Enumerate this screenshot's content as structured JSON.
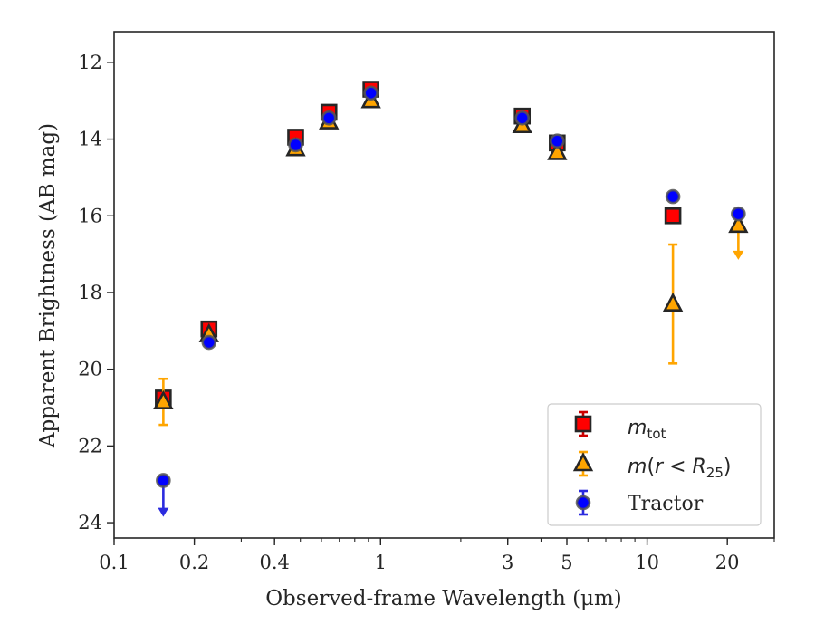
{
  "chart_data": {
    "type": "scatter",
    "xlabel": "Observed-frame Wavelength (μm)",
    "ylabel": "Apparent Brightness (AB mag)",
    "xscale": "log",
    "xlim": [
      0.1,
      30
    ],
    "ylim": [
      24.4,
      11.2
    ],
    "y_inverted": true,
    "grid": false,
    "legend_position": "lower-right",
    "xticks": [
      0.1,
      0.2,
      0.4,
      1,
      3,
      5,
      10,
      20
    ],
    "xtick_labels": [
      "0.1",
      "0.2",
      "0.4",
      "1",
      "3",
      "5",
      "10",
      "20"
    ],
    "yticks": [
      12,
      14,
      16,
      18,
      20,
      22,
      24
    ],
    "ytick_labels": [
      "12",
      "14",
      "16",
      "18",
      "20",
      "22",
      "24"
    ],
    "series": [
      {
        "name": "m_tot",
        "legend_label": "mtot",
        "marker": "square",
        "color": "#ff0000",
        "edge_color": "#262626",
        "error_color": "#cc0000",
        "points": [
          {
            "x": 0.153,
            "y": 20.75
          },
          {
            "x": 0.227,
            "y": 18.95
          },
          {
            "x": 0.48,
            "y": 13.95
          },
          {
            "x": 0.64,
            "y": 13.3
          },
          {
            "x": 0.92,
            "y": 12.7
          },
          {
            "x": 3.4,
            "y": 13.4
          },
          {
            "x": 4.6,
            "y": 14.1
          },
          {
            "x": 12.5,
            "y": 16.0
          }
        ]
      },
      {
        "name": "m(r < R25)",
        "legend_label": "m(r < R25)",
        "marker": "triangle",
        "color": "#ffa500",
        "edge_color": "#262626",
        "error_color": "#ffa500",
        "points": [
          {
            "x": 0.153,
            "y": 20.85,
            "yerr_low": 0.6,
            "yerr_high": 0.6
          },
          {
            "x": 0.227,
            "y": 19.1
          },
          {
            "x": 0.48,
            "y": 14.25
          },
          {
            "x": 0.64,
            "y": 13.55
          },
          {
            "x": 0.92,
            "y": 13.0
          },
          {
            "x": 3.4,
            "y": 13.65
          },
          {
            "x": 4.6,
            "y": 14.35
          },
          {
            "x": 12.5,
            "y": 18.3,
            "yerr_low": 1.55,
            "yerr_high": 1.55
          },
          {
            "x": 22.0,
            "y": 16.25,
            "upper_limit": true,
            "limit_to": 17.1
          }
        ]
      },
      {
        "name": "Tractor",
        "legend_label": "Tractor",
        "marker": "circle",
        "color": "#0000ff",
        "edge_color": "#555555",
        "error_color": "#2b2bdf",
        "points": [
          {
            "x": 0.153,
            "y": 22.9,
            "upper_limit": true,
            "limit_to": 23.8
          },
          {
            "x": 0.227,
            "y": 19.3
          },
          {
            "x": 0.48,
            "y": 14.15
          },
          {
            "x": 0.64,
            "y": 13.45
          },
          {
            "x": 0.92,
            "y": 12.8
          },
          {
            "x": 3.4,
            "y": 13.45
          },
          {
            "x": 4.6,
            "y": 14.05
          },
          {
            "x": 12.5,
            "y": 15.5
          },
          {
            "x": 22.0,
            "y": 15.95
          }
        ]
      }
    ]
  }
}
